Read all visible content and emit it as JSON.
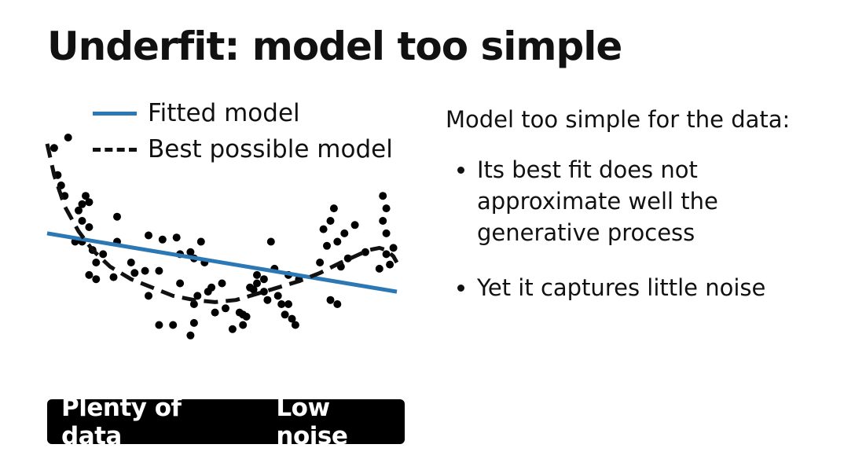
{
  "slide": {
    "title": "Underfit: model too simple"
  },
  "legend": {
    "fitted_label": "Fitted model",
    "best_label": "Best possible model",
    "fitted_color": "#2b78b5",
    "best_color": "#111111"
  },
  "description": {
    "intro": "Model too simple for the data:",
    "bullets": [
      "Its best fit does not approximate well the generative process",
      "Yet it captures little noise"
    ]
  },
  "footer": {
    "tag1": "Plenty of data",
    "tag2": "Low noise",
    "background": "#000000"
  },
  "chart_data": {
    "type": "scatter",
    "axes_visible": false,
    "grid": false,
    "points": [
      [
        0.02,
        0.95
      ],
      [
        0.06,
        1.0
      ],
      [
        0.03,
        0.82
      ],
      [
        0.04,
        0.77
      ],
      [
        0.05,
        0.72
      ],
      [
        0.1,
        0.68
      ],
      [
        0.11,
        0.72
      ],
      [
        0.12,
        0.69
      ],
      [
        0.09,
        0.65
      ],
      [
        0.1,
        0.6
      ],
      [
        0.12,
        0.57
      ],
      [
        0.2,
        0.62
      ],
      [
        0.08,
        0.5
      ],
      [
        0.1,
        0.5
      ],
      [
        0.13,
        0.46
      ],
      [
        0.16,
        0.44
      ],
      [
        0.14,
        0.4
      ],
      [
        0.2,
        0.5
      ],
      [
        0.12,
        0.34
      ],
      [
        0.14,
        0.32
      ],
      [
        0.19,
        0.33
      ],
      [
        0.24,
        0.4
      ],
      [
        0.28,
        0.36
      ],
      [
        0.25,
        0.35
      ],
      [
        0.29,
        0.53
      ],
      [
        0.33,
        0.51
      ],
      [
        0.37,
        0.52
      ],
      [
        0.41,
        0.45
      ],
      [
        0.38,
        0.44
      ],
      [
        0.44,
        0.5
      ],
      [
        0.42,
        0.42
      ],
      [
        0.45,
        0.4
      ],
      [
        0.32,
        0.36
      ],
      [
        0.38,
        0.3
      ],
      [
        0.47,
        0.28
      ],
      [
        0.46,
        0.26
      ],
      [
        0.5,
        0.3
      ],
      [
        0.43,
        0.24
      ],
      [
        0.42,
        0.2
      ],
      [
        0.51,
        0.18
      ],
      [
        0.29,
        0.24
      ],
      [
        0.48,
        0.16
      ],
      [
        0.55,
        0.16
      ],
      [
        0.57,
        0.14
      ],
      [
        0.56,
        0.1
      ],
      [
        0.32,
        0.1
      ],
      [
        0.36,
        0.1
      ],
      [
        0.42,
        0.11
      ],
      [
        0.41,
        0.05
      ],
      [
        0.53,
        0.08
      ],
      [
        0.56,
        0.15
      ],
      [
        0.6,
        0.34
      ],
      [
        0.62,
        0.32
      ],
      [
        0.6,
        0.3
      ],
      [
        0.58,
        0.28
      ],
      [
        0.62,
        0.26
      ],
      [
        0.59,
        0.27
      ],
      [
        0.64,
        0.5
      ],
      [
        0.65,
        0.37
      ],
      [
        0.66,
        0.24
      ],
      [
        0.63,
        0.22
      ],
      [
        0.67,
        0.2
      ],
      [
        0.69,
        0.2
      ],
      [
        0.68,
        0.15
      ],
      [
        0.7,
        0.13
      ],
      [
        0.71,
        0.1
      ],
      [
        0.69,
        0.34
      ],
      [
        0.72,
        0.32
      ],
      [
        0.78,
        0.4
      ],
      [
        0.79,
        0.56
      ],
      [
        0.81,
        0.6
      ],
      [
        0.83,
        0.5
      ],
      [
        0.8,
        0.48
      ],
      [
        0.85,
        0.54
      ],
      [
        0.84,
        0.38
      ],
      [
        0.86,
        0.42
      ],
      [
        0.81,
        0.22
      ],
      [
        0.83,
        0.2
      ],
      [
        0.91,
        0.45
      ],
      [
        0.95,
        0.37
      ],
      [
        0.97,
        0.44
      ],
      [
        0.98,
        0.39
      ],
      [
        0.99,
        0.47
      ],
      [
        0.97,
        0.54
      ],
      [
        0.96,
        0.6
      ],
      [
        0.97,
        0.66
      ],
      [
        0.96,
        0.72
      ],
      [
        0.82,
        0.66
      ],
      [
        0.88,
        0.58
      ]
    ],
    "fitted_line": [
      [
        0.0,
        0.54
      ],
      [
        1.0,
        0.26
      ]
    ],
    "best_curve": [
      [
        0.0,
        0.97
      ],
      [
        0.02,
        0.82
      ],
      [
        0.05,
        0.67
      ],
      [
        0.09,
        0.55
      ],
      [
        0.13,
        0.46
      ],
      [
        0.18,
        0.38
      ],
      [
        0.24,
        0.32
      ],
      [
        0.3,
        0.28
      ],
      [
        0.36,
        0.24
      ],
      [
        0.42,
        0.22
      ],
      [
        0.48,
        0.21
      ],
      [
        0.54,
        0.22
      ],
      [
        0.6,
        0.25
      ],
      [
        0.66,
        0.28
      ],
      [
        0.72,
        0.31
      ],
      [
        0.78,
        0.35
      ],
      [
        0.84,
        0.4
      ],
      [
        0.88,
        0.43
      ],
      [
        0.92,
        0.46
      ],
      [
        0.95,
        0.47
      ],
      [
        0.97,
        0.46
      ],
      [
        0.99,
        0.43
      ],
      [
        1.0,
        0.4
      ]
    ]
  }
}
